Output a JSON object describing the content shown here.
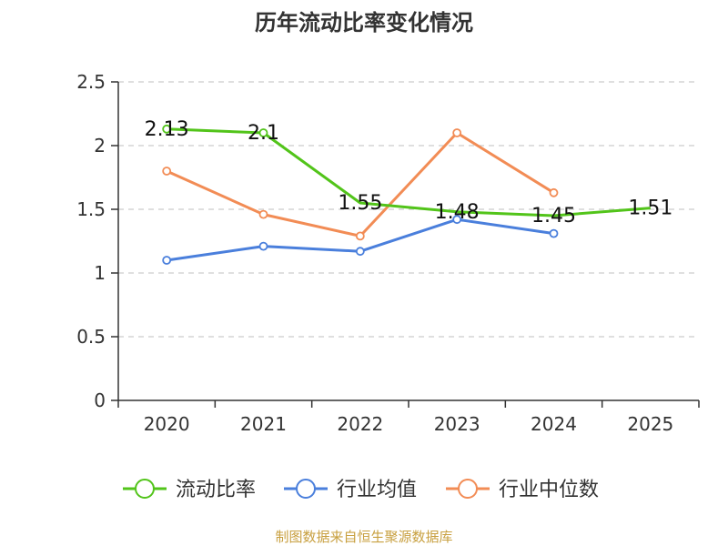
{
  "chart_data": {
    "type": "line",
    "title": "历年流动比率变化情况",
    "categories": [
      "2020",
      "2021",
      "2022",
      "2023",
      "2024",
      "2025"
    ],
    "ylim": [
      0,
      2.5
    ],
    "yticks": [
      "0",
      "0.5",
      "1",
      "1.5",
      "2",
      "2.5"
    ],
    "ytick_values": [
      0,
      0.5,
      1,
      1.5,
      2,
      2.5
    ],
    "grid": true,
    "legend_position": "bottom",
    "series": [
      {
        "name": "流动比率",
        "color": "#52c41a",
        "values": [
          2.13,
          2.1,
          1.55,
          1.48,
          1.45,
          1.51
        ],
        "labels": [
          "2.13",
          "2.1",
          "1.55",
          "1.48",
          "1.45",
          "1.51"
        ],
        "show_labels": true,
        "markers": [
          true,
          true,
          false,
          false,
          false,
          false
        ]
      },
      {
        "name": "行业均值",
        "color": "#4a7fdc",
        "values": [
          1.1,
          1.21,
          1.17,
          1.42,
          1.31,
          null
        ],
        "show_labels": false,
        "markers": [
          true,
          true,
          true,
          true,
          true,
          false
        ]
      },
      {
        "name": "行业中位数",
        "color": "#f28c55",
        "values": [
          1.8,
          1.46,
          1.29,
          2.1,
          1.63,
          null
        ],
        "show_labels": false,
        "markers": [
          true,
          true,
          true,
          true,
          true,
          false
        ]
      }
    ],
    "source": "制图数据来自恒生聚源数据库"
  }
}
